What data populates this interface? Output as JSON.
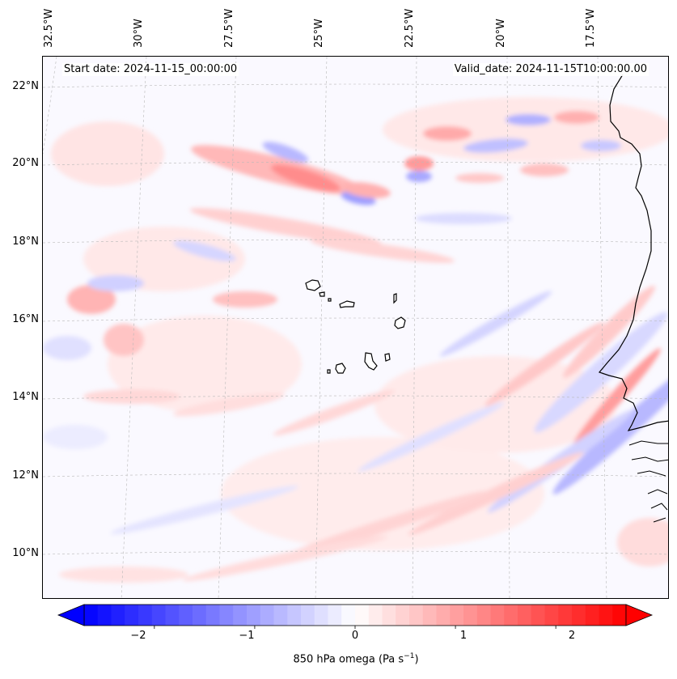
{
  "map": {
    "start_date": "Start date: 2024-11-15_00:00:00",
    "valid_date": "Valid_date: 2024-11-15T10:00:00.00",
    "longitude_labels": [
      "32.5°W",
      "30°W",
      "27.5°W",
      "25°W",
      "22.5°W",
      "20°W",
      "17.5°W"
    ],
    "latitude_labels": [
      "22°N",
      "20°N",
      "18°N",
      "16°N",
      "14°N",
      "12°N",
      "10°N"
    ],
    "extent": {
      "lon_min": -33,
      "lon_max": -15.8,
      "lat_min": 8.8,
      "lat_max": 22.8
    },
    "variable": "850 hPa omega",
    "units": "Pa s",
    "units_exponent": "−1",
    "islands": [
      "Santo Antão",
      "São Vicente",
      "Santa Luzia",
      "São Nicolau",
      "Sal",
      "Boa Vista",
      "Maio",
      "Santiago",
      "Fogo",
      "Brava"
    ],
    "colors": {
      "negative": "#0000ff",
      "neutral": "#ffffff",
      "positive": "#ff0000"
    }
  },
  "colorbar": {
    "min": -2.7,
    "max": 2.7,
    "ticks": [
      {
        "value": -2,
        "label": "−2"
      },
      {
        "value": -1,
        "label": "−1"
      },
      {
        "value": 0,
        "label": "0"
      },
      {
        "value": 1,
        "label": "1"
      },
      {
        "value": 2,
        "label": "2"
      }
    ],
    "label_prefix": "850 hPa omega (Pa s",
    "label_exponent": "−1",
    "label_suffix": ")"
  }
}
